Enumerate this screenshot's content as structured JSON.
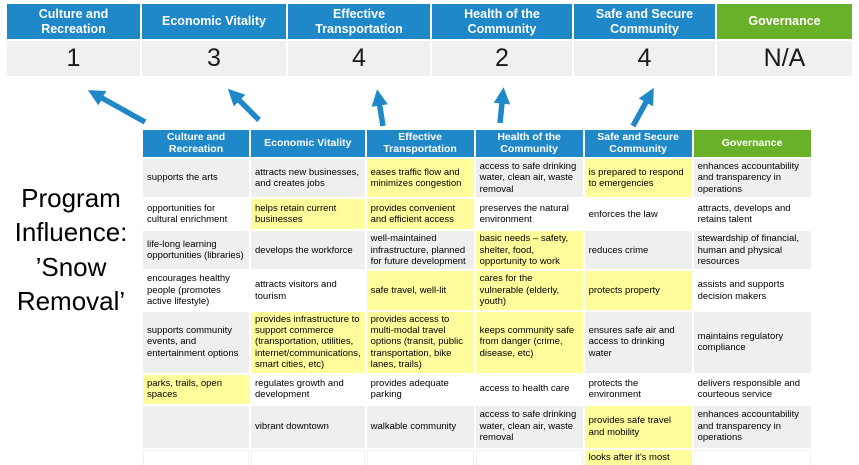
{
  "program_label": "Program Influence: ’Snow Removal’",
  "colors": {
    "header_blue": "#1f88c9",
    "governance_green": "#69b128",
    "highlight_yellow": "#fefc9b",
    "score_band_gray": "#f0f0f0",
    "row_band_gray": "#efefef",
    "arrow_blue": "#1f88c9"
  },
  "scoreboard": {
    "categories": [
      {
        "label": "Culture and Recreation",
        "score": "1",
        "accent": "#1f88c9"
      },
      {
        "label": "Economic Vitality",
        "score": "3",
        "accent": "#1f88c9"
      },
      {
        "label": "Effective Transportation",
        "score": "4",
        "accent": "#1f88c9"
      },
      {
        "label": "Health of the Community",
        "score": "2",
        "accent": "#1f88c9"
      },
      {
        "label": "Safe and Secure Community",
        "score": "4",
        "accent": "#1f88c9"
      },
      {
        "label": "Governance",
        "score": "N/A",
        "accent": "#69b128"
      }
    ]
  },
  "matrix": {
    "columns": [
      {
        "label": "Culture and Recreation",
        "accent": "#1f88c9"
      },
      {
        "label": "Economic Vitality",
        "accent": "#1f88c9"
      },
      {
        "label": "Effective Transportation",
        "accent": "#1f88c9"
      },
      {
        "label": "Health of the Community",
        "accent": "#1f88c9"
      },
      {
        "label": "Safe and Secure Community",
        "accent": "#1f88c9"
      },
      {
        "label": "Governance",
        "accent": "#69b128"
      }
    ],
    "rows": [
      [
        {
          "text": "supports the arts",
          "highlight": false
        },
        {
          "text": "attracts new businesses, and creates jobs",
          "highlight": false
        },
        {
          "text": "eases traffic flow and minimizes congestion",
          "highlight": true
        },
        {
          "text": "access to safe drinking water, clean air, waste removal",
          "highlight": false
        },
        {
          "text": "is prepared to respond to emergencies",
          "highlight": true
        },
        {
          "text": "enhances accountability and transparency in operations",
          "highlight": false
        }
      ],
      [
        {
          "text": "opportunities for cultural enrichment",
          "highlight": false
        },
        {
          "text": "helps retain current businesses",
          "highlight": true
        },
        {
          "text": "provides convenient and efficient access",
          "highlight": true
        },
        {
          "text": "preserves the natural environment",
          "highlight": false
        },
        {
          "text": "enforces the law",
          "highlight": false
        },
        {
          "text": "attracts, develops and retains talent",
          "highlight": false
        }
      ],
      [
        {
          "text": "life-long learning opportunities (libraries)",
          "highlight": false
        },
        {
          "text": "develops the workforce",
          "highlight": false
        },
        {
          "text": "well-maintained infrastructure, planned for future development",
          "highlight": false
        },
        {
          "text": "basic needs – safety, shelter, food, opportunity to work",
          "highlight": true
        },
        {
          "text": "reduces crime",
          "highlight": false
        },
        {
          "text": "stewardship of financial, human and physical resources",
          "highlight": false
        }
      ],
      [
        {
          "text": "encourages healthy people (promotes active lifestyle)",
          "highlight": false
        },
        {
          "text": "attracts visitors and tourism",
          "highlight": false
        },
        {
          "text": "safe travel, well-lit",
          "highlight": true
        },
        {
          "text": "cares for the vulnerable (elderly, youth)",
          "highlight": true
        },
        {
          "text": "protects property",
          "highlight": true
        },
        {
          "text": "assists and supports decision makers",
          "highlight": false
        }
      ],
      [
        {
          "text": "supports community events, and entertainment options",
          "highlight": false
        },
        {
          "text": "provides infrastructure to support commerce (transportation, utilities, internet/communications, smart cities, etc)",
          "highlight": true
        },
        {
          "text": "provides access to multi-modal travel options (transit, public transportation, bike lanes, trails)",
          "highlight": true
        },
        {
          "text": "keeps community safe from danger (crime, disease, etc)",
          "highlight": true
        },
        {
          "text": "ensures safe air and access to drinking water",
          "highlight": false
        },
        {
          "text": "maintains regulatory compliance",
          "highlight": false
        }
      ],
      [
        {
          "text": "parks, trails, open spaces",
          "highlight": true
        },
        {
          "text": "regulates growth and development",
          "highlight": false
        },
        {
          "text": "provides adequate parking",
          "highlight": false
        },
        {
          "text": "access to health care",
          "highlight": false
        },
        {
          "text": "protects the environment",
          "highlight": false
        },
        {
          "text": "delivers responsible and courteous service",
          "highlight": false
        }
      ],
      [
        {
          "text": "",
          "highlight": false
        },
        {
          "text": "vibrant downtown",
          "highlight": false
        },
        {
          "text": "walkable community",
          "highlight": false
        },
        {
          "text": "access to safe drinking water, clean air, waste removal",
          "highlight": false
        },
        {
          "text": "provides safe travel and mobility",
          "highlight": true
        },
        {
          "text": "enhances accountability and transparency in operations",
          "highlight": false
        }
      ],
      [
        {
          "text": "",
          "highlight": false
        },
        {
          "text": "",
          "highlight": false
        },
        {
          "text": "",
          "highlight": false
        },
        {
          "text": "",
          "highlight": false
        },
        {
          "text": "looks after it's most vulnerable",
          "highlight": true
        },
        {
          "text": "",
          "highlight": false
        }
      ]
    ]
  }
}
